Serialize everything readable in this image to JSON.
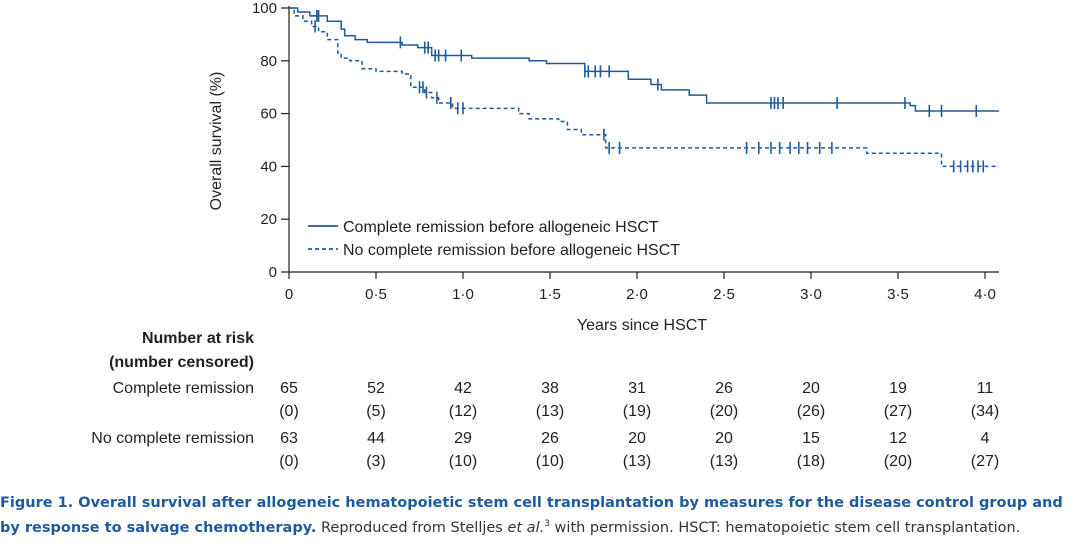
{
  "chart_data": {
    "type": "line",
    "subtype": "kaplan-meier",
    "ylabel": "Overall survival (%)",
    "xlabel": "Years since HSCT",
    "xlim": [
      0,
      4.0
    ],
    "ylim": [
      0,
      100
    ],
    "x_ticks": [
      "0",
      "0·5",
      "1·0",
      "1·5",
      "2·0",
      "2·5",
      "3·0",
      "3·5",
      "4·0"
    ],
    "x_tick_values": [
      0,
      0.5,
      1.0,
      1.5,
      2.0,
      2.5,
      3.0,
      3.5,
      4.0
    ],
    "y_ticks": [
      "0",
      "20",
      "40",
      "60",
      "80",
      "100"
    ],
    "y_tick_values": [
      0,
      20,
      40,
      60,
      80,
      100
    ],
    "grid": false,
    "legend_position": "lower-left",
    "series": [
      {
        "name": "Complete remission before allogeneic HSCT",
        "style": "solid",
        "color": "#1f5b9c",
        "steps": [
          [
            0,
            100
          ],
          [
            0.05,
            98.5
          ],
          [
            0.12,
            97
          ],
          [
            0.18,
            97
          ],
          [
            0.22,
            95
          ],
          [
            0.3,
            92
          ],
          [
            0.32,
            89.5
          ],
          [
            0.38,
            88
          ],
          [
            0.45,
            87
          ],
          [
            0.6,
            87
          ],
          [
            0.65,
            86
          ],
          [
            0.74,
            85
          ],
          [
            0.82,
            82
          ],
          [
            1.0,
            82
          ],
          [
            1.05,
            81
          ],
          [
            1.38,
            80
          ],
          [
            1.48,
            79
          ],
          [
            1.7,
            76
          ],
          [
            1.95,
            73
          ],
          [
            2.08,
            71
          ],
          [
            2.14,
            69
          ],
          [
            2.3,
            67
          ],
          [
            2.4,
            64
          ],
          [
            3.5,
            64
          ],
          [
            3.57,
            63
          ],
          [
            3.6,
            61
          ],
          [
            4.08,
            61
          ]
        ],
        "censored": [
          0.16,
          0.17,
          0.64,
          0.78,
          0.8,
          0.84,
          0.86,
          0.9,
          0.99,
          1.7,
          1.72,
          1.76,
          1.79,
          1.84,
          2.12,
          2.77,
          2.79,
          2.81,
          2.84,
          3.15,
          3.54,
          3.68,
          3.75,
          3.95
        ]
      },
      {
        "name": "No complete remission before allogeneic HSCT",
        "style": "dashed",
        "color": "#1f5b9c",
        "steps": [
          [
            0,
            100
          ],
          [
            0.03,
            97
          ],
          [
            0.08,
            95
          ],
          [
            0.13,
            93
          ],
          [
            0.17,
            91
          ],
          [
            0.22,
            88
          ],
          [
            0.28,
            83
          ],
          [
            0.3,
            81
          ],
          [
            0.35,
            80
          ],
          [
            0.42,
            77
          ],
          [
            0.5,
            76
          ],
          [
            0.65,
            75
          ],
          [
            0.7,
            70
          ],
          [
            0.78,
            68
          ],
          [
            0.82,
            66
          ],
          [
            0.86,
            64
          ],
          [
            0.94,
            62
          ],
          [
            1.28,
            62
          ],
          [
            1.32,
            60
          ],
          [
            1.38,
            58
          ],
          [
            1.55,
            57
          ],
          [
            1.6,
            54
          ],
          [
            1.68,
            52
          ],
          [
            1.82,
            47
          ],
          [
            3.27,
            47
          ],
          [
            3.32,
            45
          ],
          [
            3.72,
            45
          ],
          [
            3.75,
            40
          ],
          [
            4.08,
            40
          ]
        ],
        "censored": [
          0.15,
          0.75,
          0.77,
          0.79,
          0.85,
          0.93,
          0.97,
          1.0,
          1.81,
          1.84,
          1.9,
          2.63,
          2.7,
          2.77,
          2.82,
          2.88,
          2.93,
          2.98,
          3.05,
          3.12,
          3.82,
          3.86,
          3.9,
          3.93,
          3.96,
          3.99
        ]
      }
    ],
    "risk_table": {
      "header_line1": "Number at risk",
      "header_line2": "(number censored)",
      "rows": [
        {
          "label": "Complete remission",
          "at_risk": [
            "65",
            "52",
            "42",
            "38",
            "31",
            "26",
            "20",
            "19",
            "11"
          ],
          "censored": [
            "(0)",
            "(5)",
            "(12)",
            "(13)",
            "(19)",
            "(20)",
            "(26)",
            "(27)",
            "(34)"
          ]
        },
        {
          "label": "No complete remission",
          "at_risk": [
            "63",
            "44",
            "29",
            "26",
            "20",
            "20",
            "15",
            "12",
            "4"
          ],
          "censored": [
            "(0)",
            "(3)",
            "(10)",
            "(10)",
            "(13)",
            "(13)",
            "(18)",
            "(20)",
            "(27)"
          ]
        }
      ]
    }
  },
  "caption": {
    "bold": "Figure 1. Overall survival after allogeneic hematopoietic stem cell transplantation by measures for the disease control group and by response to salvage chemotherapy.",
    "text_before_italic": " Reproduced from Stelljes ",
    "italic": "et al.",
    "superscript": "3",
    "text_after": " with permission. HSCT: hematopoietic stem cell transplantation."
  }
}
